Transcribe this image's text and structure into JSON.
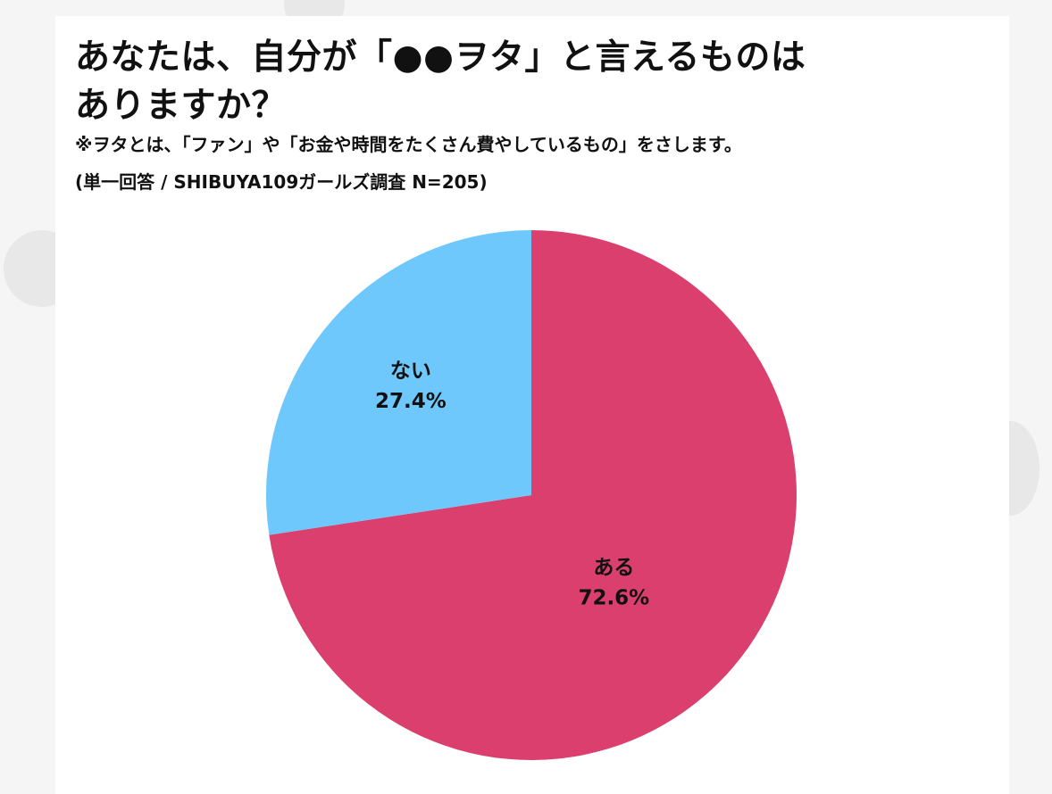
{
  "header": {
    "title_line1": "あなたは、自分が「●●ヲタ」と言えるものは",
    "title_line2": "ありますか？",
    "note": "※ヲタとは、「ファン」や「お金や時間をたくさん費やしているもの」をさします。",
    "survey_info": "(単一回答 / SHIBUYA109ガールズ調査 N=205)"
  },
  "chart_data": {
    "type": "pie",
    "title": "あなたは、自分が「●●ヲタ」と言えるものはありますか？",
    "slices": [
      {
        "label": "ある",
        "value": 72.6,
        "value_label": "72.6%",
        "color": "#db3f6e"
      },
      {
        "label": "ない",
        "value": 27.4,
        "value_label": "27.4%",
        "color": "#6ec8fb"
      }
    ],
    "start": "12 o'clock",
    "direction": "clockwise",
    "legend": "none"
  }
}
